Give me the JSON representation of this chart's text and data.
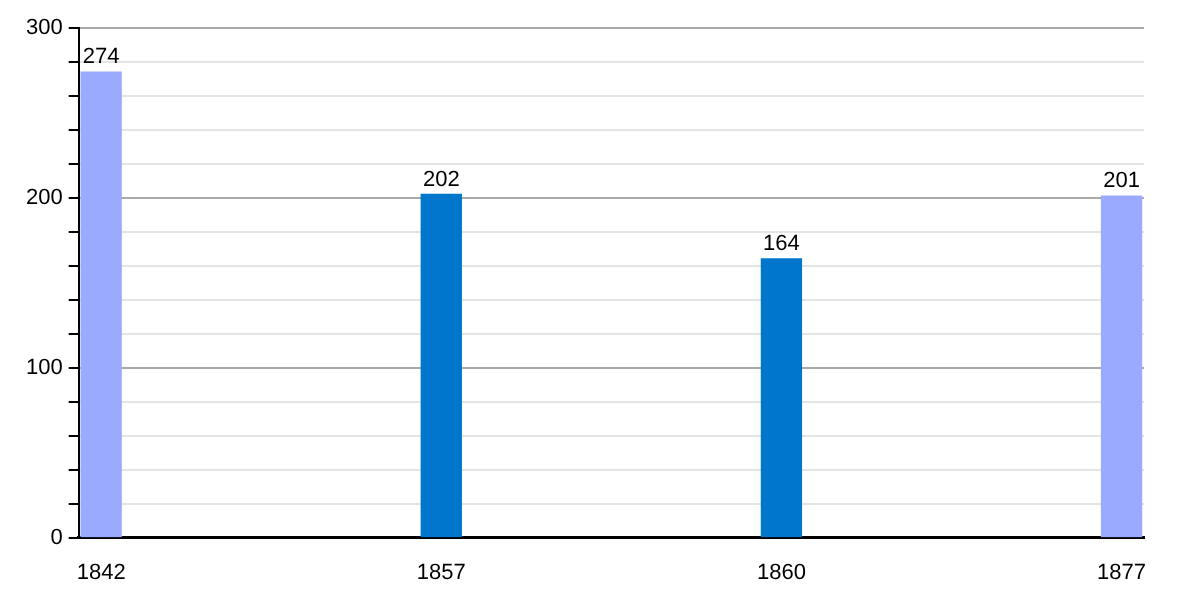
{
  "chart_data": {
    "type": "bar",
    "categories": [
      "1842",
      "1857",
      "1860",
      "1877"
    ],
    "values": [
      274,
      202,
      164,
      201
    ],
    "colors": [
      "#99aaff",
      "#0077cc",
      "#0077cc",
      "#99aaff"
    ],
    "ylim": [
      0,
      300
    ],
    "yticks": [
      0,
      {
        "value": 20,
        "label": null
      },
      {
        "value": 40,
        "label": null
      },
      {
        "value": 60,
        "label": null
      },
      {
        "value": 80,
        "label": null
      },
      100,
      {
        "value": 120,
        "label": null
      },
      {
        "value": 140,
        "label": null
      },
      {
        "value": 160,
        "label": null
      },
      {
        "value": 180,
        "label": null
      },
      200,
      {
        "value": 220,
        "label": null
      },
      {
        "value": 240,
        "label": null
      },
      {
        "value": 260,
        "label": null
      },
      {
        "value": 280,
        "label": null
      },
      300
    ],
    "grid": true,
    "data_labels": true
  }
}
